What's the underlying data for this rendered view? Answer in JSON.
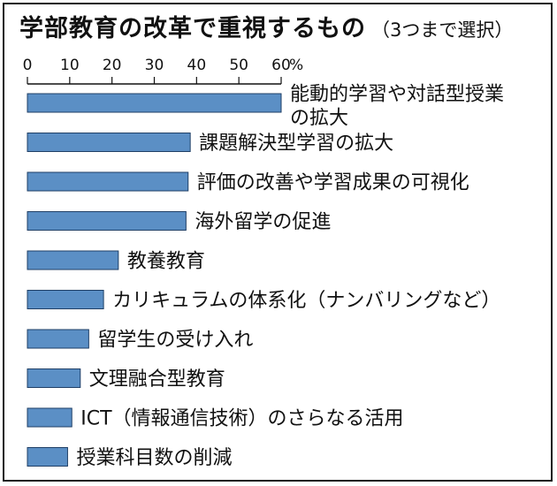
{
  "title": "学部教育の改革で重視するもの",
  "subtitle": "（3つまで選択）",
  "chart_data": {
    "type": "bar",
    "orientation": "horizontal",
    "title": "学部教育の改革で重視するもの",
    "subtitle": "（3つまで選択）",
    "unit": "%",
    "xlim": [
      0,
      60
    ],
    "ticks": [
      0,
      10,
      20,
      30,
      40,
      50,
      60
    ],
    "bar_color": "#5b8fc5",
    "categories": [
      [
        "能動的学習や対話型授業",
        "の拡大"
      ],
      [
        "課題解決型学習の拡大"
      ],
      [
        "評価の改善や学習成果の可視化"
      ],
      [
        "海外留学の促進"
      ],
      [
        "教養教育"
      ],
      [
        "カリキュラムの体系化（ナンバリングなど）"
      ],
      [
        "留学生の受け入れ"
      ],
      [
        "文理融合型教育"
      ],
      [
        "ICT（情報通信技術）のさらなる活用"
      ],
      [
        "授業科目数の削減"
      ]
    ],
    "values": [
      60,
      38.5,
      38,
      37.5,
      21.5,
      18,
      14.5,
      12.5,
      10.5,
      9.5
    ]
  }
}
